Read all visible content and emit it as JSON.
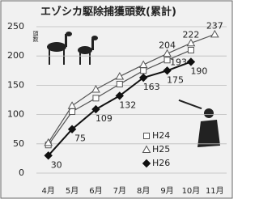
{
  "chart_data": {
    "type": "line",
    "title": "エゾシカ駆除捕獲頭数(累計)",
    "y_label": "頭数",
    "categories": [
      "4月",
      "5月",
      "6月",
      "7月",
      "8月",
      "9月",
      "10月",
      "11月"
    ],
    "series": [
      {
        "name": "H24",
        "color": "#555555",
        "marker": "square",
        "values": [
          48,
          105,
          128,
          152,
          175,
          193,
          210,
          null
        ],
        "labeled_points": [
          5
        ]
      },
      {
        "name": "H25",
        "color": "#555555",
        "marker": "triangle",
        "values": [
          52,
          115,
          143,
          165,
          185,
          204,
          222,
          237
        ],
        "labeled_points": [
          5,
          6,
          7
        ]
      },
      {
        "name": "H26",
        "color": "#111111",
        "marker": "diamond",
        "values": [
          30,
          75,
          109,
          132,
          163,
          175,
          190,
          null
        ],
        "labeled_points": [
          0,
          1,
          2,
          3,
          4,
          5,
          6
        ]
      }
    ],
    "ylim": [
      0,
      250
    ],
    "yticks": [
      0,
      50,
      100,
      150,
      200,
      250
    ],
    "grid": true
  }
}
